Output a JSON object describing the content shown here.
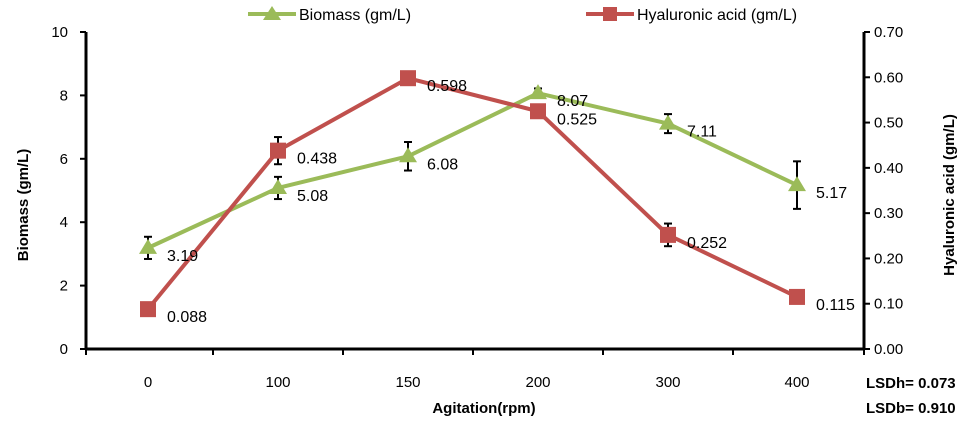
{
  "chart_data": {
    "type": "line",
    "title": "",
    "xlabel": "Agitation(rpm)",
    "ylabel_left": "Biomass (gm/L)",
    "ylabel_right": "Hyaluronic acid (gm/L)",
    "categories": [
      "0",
      "100",
      "150",
      "200",
      "300",
      "400"
    ],
    "y_left": {
      "min": 0,
      "max": 10,
      "ticks": [
        "0",
        "2",
        "4",
        "6",
        "8",
        "10"
      ]
    },
    "y_right": {
      "min": 0,
      "max": 0.7,
      "ticks": [
        "0.00",
        "0.10",
        "0.20",
        "0.30",
        "0.40",
        "0.50",
        "0.60",
        "0.70"
      ]
    },
    "grid": false,
    "legend_position": "top",
    "series": [
      {
        "name": "Biomass (gm/L)",
        "axis": "left",
        "marker": "triangle",
        "color": "#9BBB59",
        "values": [
          3.19,
          5.08,
          6.08,
          8.07,
          7.11,
          5.17
        ],
        "errors": [
          0.35,
          0.35,
          0.45,
          0.15,
          0.3,
          0.75
        ],
        "labels": [
          "3.19",
          "5.08",
          "6.08",
          "8.07",
          "7.11",
          "5.17"
        ]
      },
      {
        "name": "Hyaluronic acid (gm/L)",
        "axis": "right",
        "marker": "square",
        "color": "#C0504D",
        "values": [
          0.088,
          0.438,
          0.598,
          0.525,
          0.252,
          0.115
        ],
        "errors": [
          0,
          0.03,
          0,
          0,
          0.025,
          0
        ],
        "labels": [
          "0.088",
          "0.438",
          "0.598",
          "0.525",
          "0.252",
          "0.115"
        ]
      }
    ],
    "annotations": [
      "LSDh= 0.073",
      "LSDb= 0.910"
    ]
  }
}
